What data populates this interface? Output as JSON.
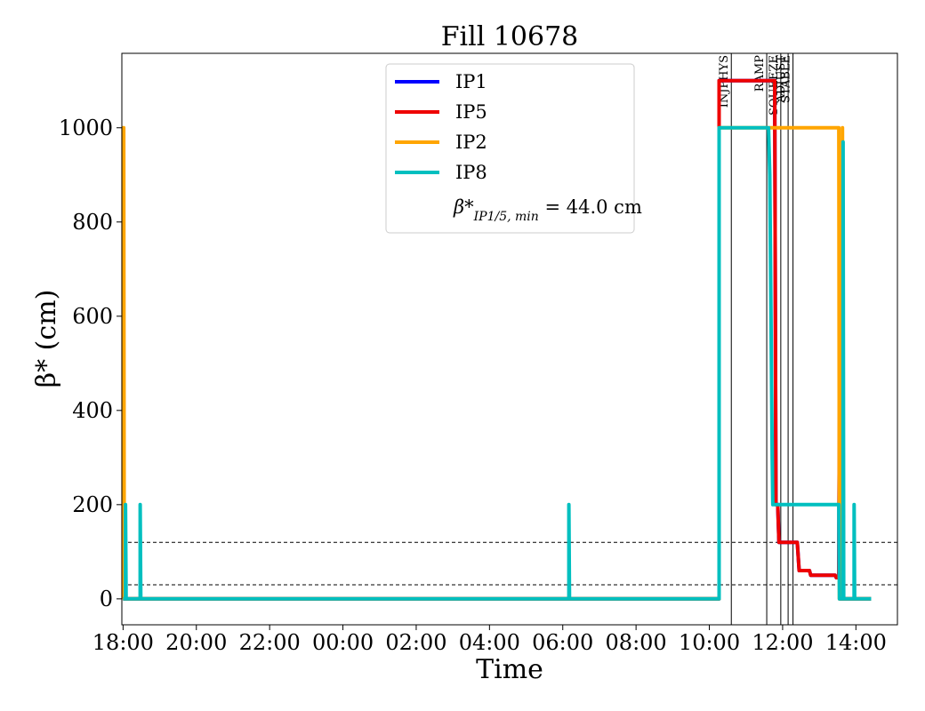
{
  "chart_data": {
    "type": "line",
    "title": "Fill 10678",
    "xlabel": "Time",
    "ylabel": "β* (cm)",
    "x_ticks": [
      "18:00",
      "20:00",
      "22:00",
      "00:00",
      "02:00",
      "04:00",
      "06:00",
      "08:00",
      "10:00",
      "12:00",
      "14:00"
    ],
    "y_ticks": [
      0,
      200,
      400,
      600,
      800,
      1000
    ],
    "xlim": [
      "17:58",
      "15:08"
    ],
    "ylim": [
      -55,
      1158
    ],
    "grid": false,
    "legend_position": "top-center",
    "legend_note_prefix": "β*",
    "legend_note_sub": "IP1/5, min",
    "legend_note_value": " = 44.0 cm",
    "reference_lines": [
      30,
      120
    ],
    "phase_markers": [
      {
        "label": "INJPHYS",
        "time": "10:36"
      },
      {
        "label": "RAMP",
        "time": "11:34"
      },
      {
        "label": "SQUEEZE",
        "time": "11:57"
      },
      {
        "label": "ADJUST",
        "time": "12:09"
      },
      {
        "label": "STABLE",
        "time": "12:17"
      }
    ],
    "series": [
      {
        "name": "IP1",
        "color": "#0000ff",
        "points": [
          [
            "18:00",
            0
          ],
          [
            "10:16",
            0
          ],
          [
            "10:16",
            1100
          ],
          [
            "11:47",
            1100
          ],
          [
            "11:49",
            200
          ],
          [
            "11:52",
            200
          ],
          [
            "11:54",
            120
          ],
          [
            "12:24",
            120
          ],
          [
            "12:27",
            60
          ],
          [
            "12:44",
            60
          ],
          [
            "12:46",
            50
          ],
          [
            "13:26",
            50
          ],
          [
            "13:28",
            45
          ],
          [
            "13:32",
            45
          ],
          [
            "13:33",
            430
          ],
          [
            "13:34",
            0
          ],
          [
            "14:25",
            0
          ]
        ]
      },
      {
        "name": "IP5",
        "color": "#ee0000",
        "points": [
          [
            "18:00",
            0
          ],
          [
            "10:16",
            0
          ],
          [
            "10:16",
            1100
          ],
          [
            "11:47",
            1100
          ],
          [
            "11:49",
            200
          ],
          [
            "11:52",
            200
          ],
          [
            "11:54",
            120
          ],
          [
            "12:24",
            120
          ],
          [
            "12:27",
            60
          ],
          [
            "12:44",
            60
          ],
          [
            "12:46",
            50
          ],
          [
            "13:26",
            50
          ],
          [
            "13:28",
            45
          ],
          [
            "13:32",
            45
          ],
          [
            "13:33",
            430
          ],
          [
            "13:34",
            0
          ],
          [
            "14:25",
            0
          ]
        ]
      },
      {
        "name": "IP2",
        "color": "#ffa500",
        "points": [
          [
            "18:00",
            0
          ],
          [
            "18:00",
            1000
          ],
          [
            "18:01",
            1000
          ],
          [
            "18:02",
            0
          ],
          [
            "10:16",
            0
          ],
          [
            "10:16",
            1000
          ],
          [
            "13:32",
            1000
          ],
          [
            "13:33",
            0
          ],
          [
            "13:38",
            0
          ],
          [
            "13:38",
            1000
          ],
          [
            "13:39",
            0
          ],
          [
            "14:25",
            0
          ]
        ]
      },
      {
        "name": "IP8",
        "color": "#00bfbf",
        "points": [
          [
            "18:00",
            0
          ],
          [
            "18:04",
            0
          ],
          [
            "18:04",
            200
          ],
          [
            "18:05",
            0
          ],
          [
            "18:28",
            0
          ],
          [
            "18:28",
            200
          ],
          [
            "18:29",
            0
          ],
          [
            "06:10",
            0
          ],
          [
            "06:10",
            200
          ],
          [
            "06:11",
            0
          ],
          [
            "10:16",
            0
          ],
          [
            "10:16",
            1000
          ],
          [
            "11:37",
            1000
          ],
          [
            "11:39",
            900
          ],
          [
            "11:43",
            300
          ],
          [
            "11:44",
            200
          ],
          [
            "13:32",
            200
          ],
          [
            "13:33",
            0
          ],
          [
            "13:39",
            0
          ],
          [
            "13:39",
            970
          ],
          [
            "13:40",
            0
          ],
          [
            "13:57",
            0
          ],
          [
            "13:57",
            200
          ],
          [
            "13:58",
            0
          ],
          [
            "14:25",
            0
          ]
        ]
      }
    ]
  }
}
